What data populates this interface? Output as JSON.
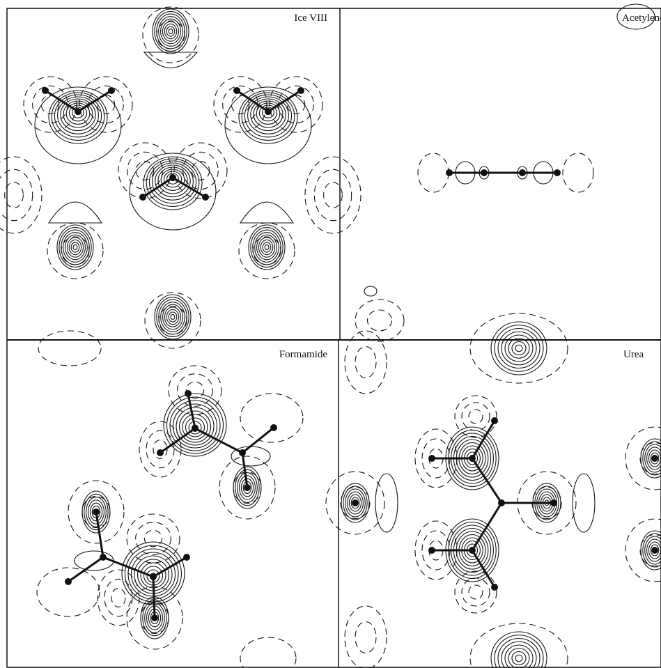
{
  "panels": [
    {
      "label": "Ice VIII"
    },
    {
      "label": "Acetylene"
    },
    {
      "label": "Formamide"
    },
    {
      "label": "Urea"
    }
  ]
}
